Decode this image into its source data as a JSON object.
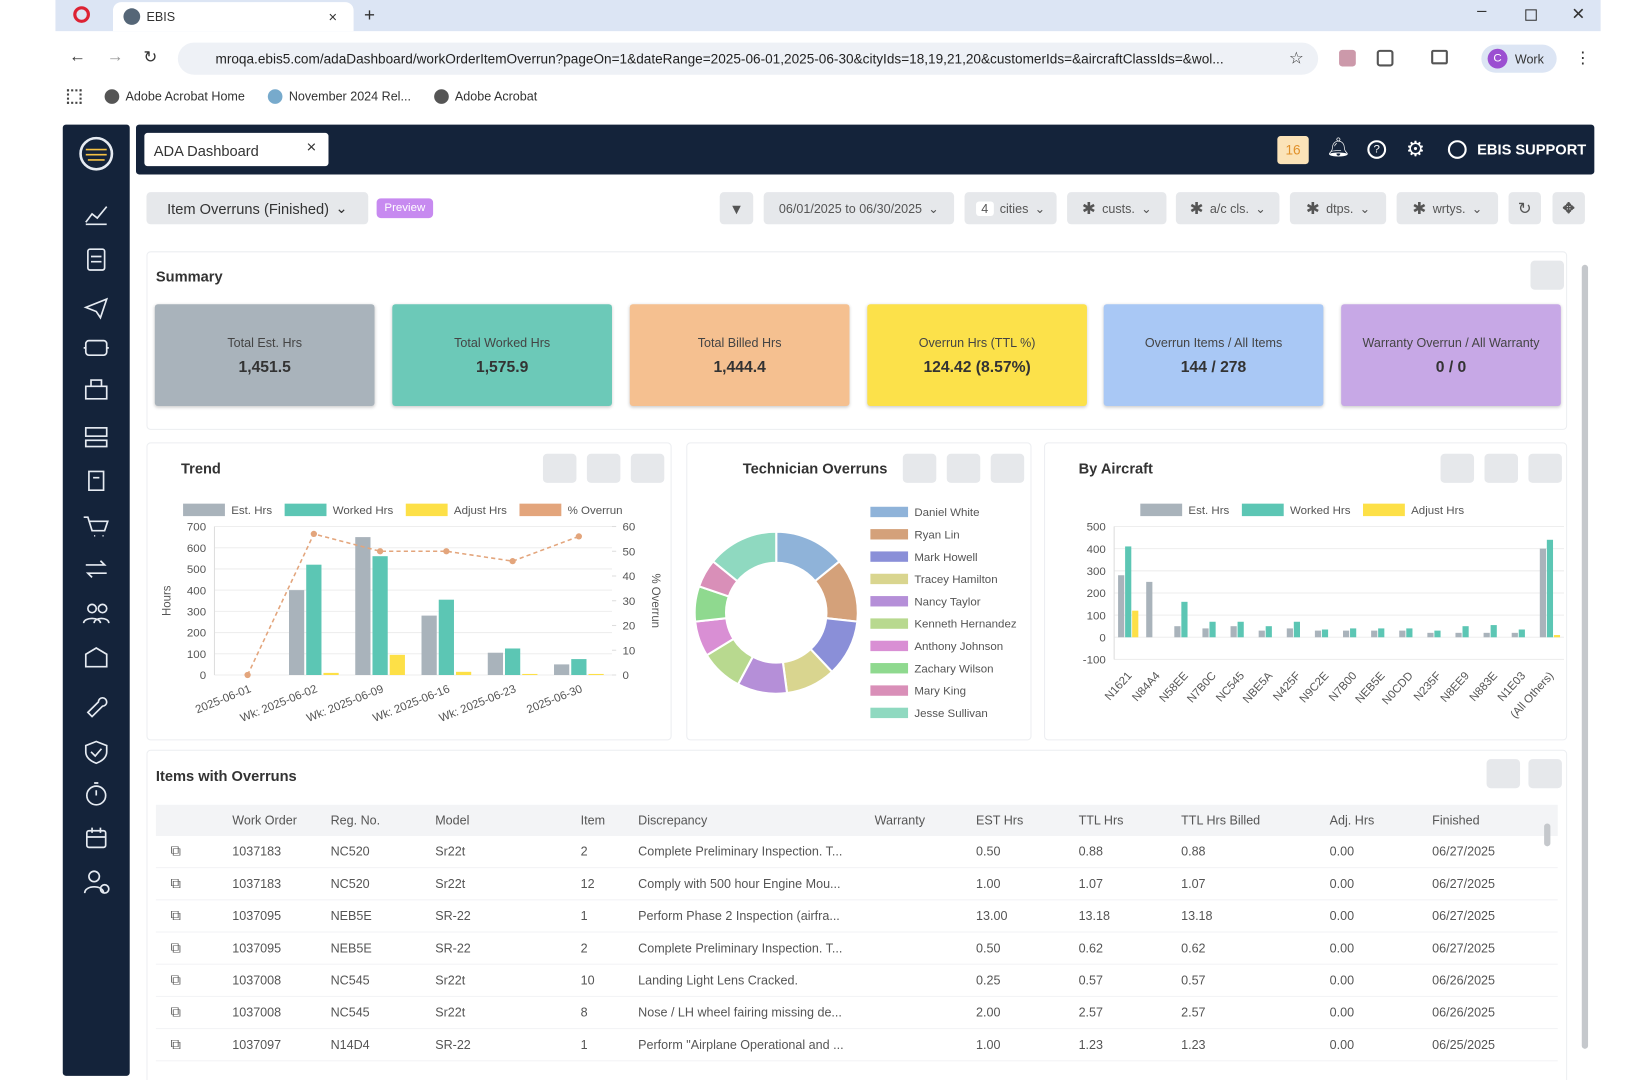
{
  "browser": {
    "tab_title": "EBIS",
    "url": "mroqa.ebis5.com/adaDashboard/workOrderItemOverrun?pageOn=1&dateRange=2025-06-01,2025-06-30&cityIds=18,19,21,20&customerIds=&aircraftClassIds=&wol...",
    "profile": "Work",
    "bookmarks": [
      "Adobe Acrobat Home",
      "November 2024 Rel...",
      "Adobe Acrobat"
    ]
  },
  "app": {
    "tab": "ADA Dashboard",
    "badge": "16",
    "user": "EBIS SUPPORT"
  },
  "toolbar": {
    "report": "Item Overruns (Finished)",
    "tag": "Preview",
    "date_range": "06/01/2025 to 06/30/2025",
    "cities_count": "4",
    "cities": "cities",
    "filters": [
      "custs.",
      "a/c cls.",
      "dtps.",
      "wrtys."
    ]
  },
  "summary": {
    "title": "Summary",
    "cards": [
      {
        "label": "Total Est. Hrs",
        "value": "1,451.5",
        "color": "#a9b3bb"
      },
      {
        "label": "Total Worked Hrs",
        "value": "1,575.9",
        "color": "#6cc9b8"
      },
      {
        "label": "Total Billed Hrs",
        "value": "1,444.4",
        "color": "#f5c090"
      },
      {
        "label": "Overrun Hrs (TTL %)",
        "value": "124.42 (8.57%)",
        "color": "#fce14a"
      },
      {
        "label": "Overrun Items / All Items",
        "value": "144 / 278",
        "color": "#a9c8f5"
      },
      {
        "label": "Warranty Overrun / All Warranty",
        "value": "0 / 0",
        "color": "#c7a8e6"
      }
    ]
  },
  "chart_data": [
    {
      "type": "bar",
      "title": "Trend",
      "categories": [
        "2025-06-01",
        "Wk: 2025-06-02",
        "Wk: 2025-06-09",
        "Wk: 2025-06-16",
        "Wk: 2025-06-23",
        "2025-06-30"
      ],
      "series": [
        {
          "name": "Est. Hrs",
          "color": "#a9b3bb",
          "values": [
            0,
            400,
            650,
            280,
            105,
            50
          ]
        },
        {
          "name": "Worked Hrs",
          "color": "#5cc6b4",
          "values": [
            0,
            520,
            560,
            355,
            125,
            75
          ]
        },
        {
          "name": "Adjust Hrs",
          "color": "#fde047",
          "values": [
            0,
            10,
            95,
            15,
            5,
            5
          ]
        },
        {
          "name": "% Overrun",
          "color": "#e3a57c",
          "type": "line",
          "axis": "y2",
          "values": [
            0,
            57,
            50,
            50,
            46,
            56
          ]
        }
      ],
      "ylabel": "Hours",
      "y2label": "% Overrun",
      "ylim": [
        0,
        700
      ],
      "yticks": [
        0,
        100,
        200,
        300,
        400,
        500,
        600,
        700
      ],
      "y2lim": [
        0,
        60
      ],
      "y2ticks": [
        0,
        10,
        20,
        30,
        40,
        50,
        60
      ]
    },
    {
      "type": "pie",
      "donut": true,
      "title": "Technician Overruns",
      "categories": [
        "Daniel White",
        "Ryan Lin",
        "Mark Howell",
        "Tracey Hamilton",
        "Nancy Taylor",
        "Kenneth Hernandez",
        "Anthony Johnson",
        "Zachary Wilson",
        "Mary King",
        "Jesse Sullivan"
      ],
      "colors": [
        "#8fb3d9",
        "#d4a17a",
        "#8a8fd8",
        "#d9d58f",
        "#b58fd8",
        "#b8d98f",
        "#d98fd4",
        "#8fd98f",
        "#d98fb8",
        "#8fd9c0"
      ],
      "values": [
        10,
        9,
        8,
        7,
        7,
        6,
        5,
        5,
        4,
        10
      ]
    },
    {
      "type": "bar",
      "title": "By Aircraft",
      "categories": [
        "N1621",
        "N84A4",
        "N58EE",
        "N7B0C",
        "NC545",
        "NBE5A",
        "N425F",
        "N9C2E",
        "N7B00",
        "NEB5E",
        "N0CDD",
        "N235F",
        "N8EE9",
        "N883E",
        "N1E03",
        "(All Others)"
      ],
      "series": [
        {
          "name": "Est. Hrs",
          "color": "#a9b3bb",
          "values": [
            280,
            250,
            50,
            40,
            50,
            30,
            40,
            30,
            30,
            30,
            30,
            20,
            20,
            20,
            20,
            400
          ]
        },
        {
          "name": "Worked Hrs",
          "color": "#5cc6b4",
          "values": [
            410,
            0,
            160,
            70,
            70,
            50,
            70,
            35,
            40,
            40,
            40,
            30,
            50,
            55,
            35,
            440
          ]
        },
        {
          "name": "Adjust Hrs",
          "color": "#fde047",
          "values": [
            120,
            0,
            0,
            0,
            0,
            0,
            0,
            0,
            0,
            0,
            0,
            0,
            0,
            0,
            0,
            10
          ]
        }
      ],
      "ylim": [
        -100,
        500
      ],
      "yticks": [
        -100,
        0,
        100,
        200,
        300,
        400,
        500
      ]
    }
  ],
  "table": {
    "title": "Items with Overruns",
    "columns": [
      "Work Order",
      "Reg. No.",
      "Model",
      "Item",
      "Discrepancy",
      "Warranty",
      "EST Hrs",
      "TTL Hrs",
      "TTL Hrs Billed",
      "Adj. Hrs",
      "Finished"
    ],
    "rows": [
      {
        "work_order": "1037183",
        "reg_no": "NC520",
        "model": "Sr22t",
        "item": "2",
        "discrepancy": "Complete Preliminary Inspection. T...",
        "est": "0.50",
        "ttl": "0.88",
        "billed": "0.88",
        "adj": "0.00",
        "finished": "06/27/2025"
      },
      {
        "work_order": "1037183",
        "reg_no": "NC520",
        "model": "Sr22t",
        "item": "12",
        "discrepancy": "Comply with 500 hour Engine Mou...",
        "est": "1.00",
        "ttl": "1.07",
        "billed": "1.07",
        "adj": "0.00",
        "finished": "06/27/2025"
      },
      {
        "work_order": "1037095",
        "reg_no": "NEB5E",
        "model": "SR-22",
        "item": "1",
        "discrepancy": "Perform Phase 2 Inspection (airfra...",
        "est": "13.00",
        "ttl": "13.18",
        "billed": "13.18",
        "adj": "0.00",
        "finished": "06/27/2025"
      },
      {
        "work_order": "1037095",
        "reg_no": "NEB5E",
        "model": "SR-22",
        "item": "2",
        "discrepancy": "Complete Preliminary Inspection. T...",
        "est": "0.50",
        "ttl": "0.62",
        "billed": "0.62",
        "adj": "0.00",
        "finished": "06/27/2025"
      },
      {
        "work_order": "1037008",
        "reg_no": "NC545",
        "model": "Sr22t",
        "item": "10",
        "discrepancy": "Landing Light Lens Cracked.",
        "est": "0.25",
        "ttl": "0.57",
        "billed": "0.57",
        "adj": "0.00",
        "finished": "06/26/2025"
      },
      {
        "work_order": "1037008",
        "reg_no": "NC545",
        "model": "Sr22t",
        "item": "8",
        "discrepancy": "Nose / LH wheel fairing missing de...",
        "est": "2.00",
        "ttl": "2.57",
        "billed": "2.57",
        "adj": "0.00",
        "finished": "06/26/2025"
      },
      {
        "work_order": "1037097",
        "reg_no": "N14D4",
        "model": "SR-22",
        "item": "1",
        "discrepancy": "Perform \"Airplane Operational and ...",
        "est": "1.00",
        "ttl": "1.23",
        "billed": "1.23",
        "adj": "0.00",
        "finished": "06/25/2025"
      }
    ]
  }
}
